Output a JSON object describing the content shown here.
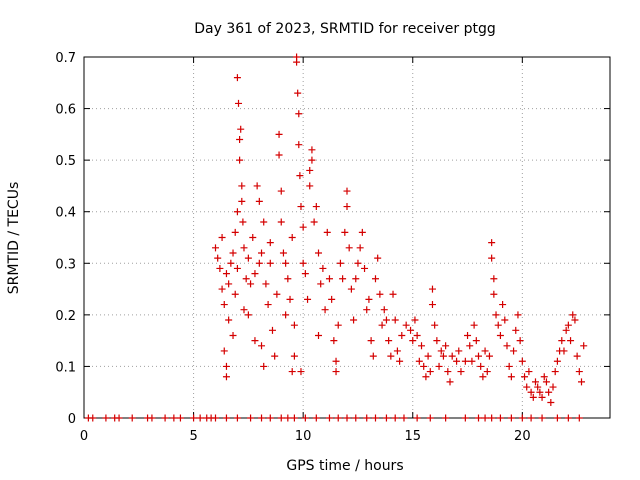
{
  "chart_data": {
    "type": "scatter",
    "title": "Day 361 of 2023, SRMTID for receiver ptgg",
    "xlabel": "GPS time / hours",
    "ylabel": "SRMTID / TECUs",
    "xlim": [
      0,
      24
    ],
    "ylim": [
      0,
      0.7
    ],
    "xticks": [
      0,
      5,
      10,
      15,
      20
    ],
    "yticks": [
      0,
      0.1,
      0.2,
      0.3,
      0.4,
      0.5,
      0.6,
      0.7
    ],
    "xtick_labels": [
      "0",
      "5",
      "10",
      "15",
      "20"
    ],
    "ytick_labels": [
      "0",
      "0.1",
      "0.2",
      "0.3",
      "0.4",
      "0.5",
      "0.6",
      "0.7"
    ],
    "grid": true,
    "marker": "+",
    "color": "#d40000",
    "series": [
      {
        "name": "SRMTID",
        "points": [
          [
            6.0,
            0.33
          ],
          [
            6.1,
            0.31
          ],
          [
            6.2,
            0.29
          ],
          [
            6.3,
            0.35
          ],
          [
            6.3,
            0.25
          ],
          [
            6.4,
            0.22
          ],
          [
            6.4,
            0.13
          ],
          [
            6.5,
            0.1
          ],
          [
            6.5,
            0.08
          ],
          [
            6.5,
            0.28
          ],
          [
            6.6,
            0.26
          ],
          [
            6.6,
            0.19
          ],
          [
            6.7,
            0.3
          ],
          [
            6.8,
            0.32
          ],
          [
            6.8,
            0.16
          ],
          [
            6.9,
            0.36
          ],
          [
            6.9,
            0.24
          ],
          [
            7.0,
            0.4
          ],
          [
            7.0,
            0.29
          ],
          [
            7.0,
            0.66
          ],
          [
            7.05,
            0.61
          ],
          [
            7.1,
            0.54
          ],
          [
            7.1,
            0.5
          ],
          [
            7.15,
            0.56
          ],
          [
            7.2,
            0.45
          ],
          [
            7.2,
            0.42
          ],
          [
            7.25,
            0.38
          ],
          [
            7.3,
            0.33
          ],
          [
            7.3,
            0.21
          ],
          [
            7.4,
            0.27
          ],
          [
            7.5,
            0.31
          ],
          [
            7.5,
            0.2
          ],
          [
            7.6,
            0.26
          ],
          [
            7.7,
            0.35
          ],
          [
            7.8,
            0.28
          ],
          [
            7.8,
            0.15
          ],
          [
            7.9,
            0.45
          ],
          [
            8.0,
            0.42
          ],
          [
            8.0,
            0.3
          ],
          [
            8.1,
            0.32
          ],
          [
            8.1,
            0.14
          ],
          [
            8.2,
            0.38
          ],
          [
            8.2,
            0.1
          ],
          [
            8.3,
            0.26
          ],
          [
            8.4,
            0.22
          ],
          [
            8.5,
            0.34
          ],
          [
            8.5,
            0.3
          ],
          [
            8.6,
            0.17
          ],
          [
            8.7,
            0.12
          ],
          [
            8.8,
            0.24
          ],
          [
            8.9,
            0.55
          ],
          [
            8.9,
            0.51
          ],
          [
            9.0,
            0.44
          ],
          [
            9.0,
            0.38
          ],
          [
            9.1,
            0.32
          ],
          [
            9.2,
            0.3
          ],
          [
            9.2,
            0.2
          ],
          [
            9.3,
            0.27
          ],
          [
            9.4,
            0.23
          ],
          [
            9.5,
            0.35
          ],
          [
            9.5,
            0.09
          ],
          [
            9.6,
            0.18
          ],
          [
            9.6,
            0.12
          ],
          [
            9.7,
            0.7
          ],
          [
            9.7,
            0.69
          ],
          [
            9.75,
            0.63
          ],
          [
            9.8,
            0.59
          ],
          [
            9.8,
            0.53
          ],
          [
            9.85,
            0.47
          ],
          [
            9.9,
            0.41
          ],
          [
            9.9,
            0.09
          ],
          [
            10.0,
            0.37
          ],
          [
            10.0,
            0.3
          ],
          [
            10.1,
            0.28
          ],
          [
            10.2,
            0.23
          ],
          [
            10.3,
            0.48
          ],
          [
            10.3,
            0.45
          ],
          [
            10.4,
            0.5
          ],
          [
            10.4,
            0.52
          ],
          [
            10.5,
            0.38
          ],
          [
            10.6,
            0.41
          ],
          [
            10.7,
            0.32
          ],
          [
            10.7,
            0.16
          ],
          [
            10.8,
            0.26
          ],
          [
            10.9,
            0.29
          ],
          [
            11.0,
            0.21
          ],
          [
            11.1,
            0.36
          ],
          [
            11.2,
            0.27
          ],
          [
            11.3,
            0.23
          ],
          [
            11.4,
            0.15
          ],
          [
            11.5,
            0.11
          ],
          [
            11.5,
            0.09
          ],
          [
            11.6,
            0.18
          ],
          [
            11.7,
            0.3
          ],
          [
            11.8,
            0.27
          ],
          [
            11.9,
            0.36
          ],
          [
            12.0,
            0.44
          ],
          [
            12.0,
            0.41
          ],
          [
            12.1,
            0.33
          ],
          [
            12.2,
            0.25
          ],
          [
            12.3,
            0.19
          ],
          [
            12.4,
            0.27
          ],
          [
            12.5,
            0.3
          ],
          [
            12.6,
            0.33
          ],
          [
            12.7,
            0.36
          ],
          [
            12.8,
            0.29
          ],
          [
            12.9,
            0.21
          ],
          [
            13.0,
            0.23
          ],
          [
            13.1,
            0.15
          ],
          [
            13.2,
            0.12
          ],
          [
            13.3,
            0.27
          ],
          [
            13.4,
            0.31
          ],
          [
            13.5,
            0.24
          ],
          [
            13.6,
            0.18
          ],
          [
            13.7,
            0.21
          ],
          [
            13.8,
            0.19
          ],
          [
            13.9,
            0.15
          ],
          [
            14.0,
            0.12
          ],
          [
            14.1,
            0.24
          ],
          [
            14.2,
            0.19
          ],
          [
            14.3,
            0.13
          ],
          [
            14.4,
            0.11
          ],
          [
            14.5,
            0.16
          ],
          [
            14.7,
            0.18
          ],
          [
            14.9,
            0.17
          ],
          [
            15.0,
            0.15
          ],
          [
            15.1,
            0.19
          ],
          [
            15.2,
            0.16
          ],
          [
            15.3,
            0.11
          ],
          [
            15.4,
            0.14
          ],
          [
            15.5,
            0.1
          ],
          [
            15.6,
            0.08
          ],
          [
            15.7,
            0.12
          ],
          [
            15.8,
            0.09
          ],
          [
            15.9,
            0.25
          ],
          [
            15.9,
            0.22
          ],
          [
            16.0,
            0.18
          ],
          [
            16.1,
            0.15
          ],
          [
            16.2,
            0.1
          ],
          [
            16.3,
            0.13
          ],
          [
            16.4,
            0.12
          ],
          [
            16.5,
            0.14
          ],
          [
            16.6,
            0.09
          ],
          [
            16.7,
            0.07
          ],
          [
            16.8,
            0.12
          ],
          [
            17.0,
            0.11
          ],
          [
            17.1,
            0.13
          ],
          [
            17.2,
            0.09
          ],
          [
            17.4,
            0.11
          ],
          [
            17.5,
            0.16
          ],
          [
            17.6,
            0.14
          ],
          [
            17.7,
            0.11
          ],
          [
            17.8,
            0.18
          ],
          [
            17.9,
            0.15
          ],
          [
            18.0,
            0.12
          ],
          [
            18.1,
            0.1
          ],
          [
            18.2,
            0.08
          ],
          [
            18.3,
            0.13
          ],
          [
            18.4,
            0.09
          ],
          [
            18.5,
            0.12
          ],
          [
            18.6,
            0.34
          ],
          [
            18.6,
            0.31
          ],
          [
            18.7,
            0.27
          ],
          [
            18.7,
            0.24
          ],
          [
            18.8,
            0.2
          ],
          [
            18.9,
            0.18
          ],
          [
            19.0,
            0.16
          ],
          [
            19.1,
            0.22
          ],
          [
            19.2,
            0.19
          ],
          [
            19.3,
            0.14
          ],
          [
            19.4,
            0.1
          ],
          [
            19.5,
            0.08
          ],
          [
            19.6,
            0.13
          ],
          [
            19.7,
            0.17
          ],
          [
            19.8,
            0.2
          ],
          [
            19.9,
            0.15
          ],
          [
            20.0,
            0.11
          ],
          [
            20.1,
            0.08
          ],
          [
            20.2,
            0.06
          ],
          [
            20.3,
            0.09
          ],
          [
            20.4,
            0.05
          ],
          [
            20.5,
            0.04
          ],
          [
            20.6,
            0.07
          ],
          [
            20.7,
            0.06
          ],
          [
            20.8,
            0.05
          ],
          [
            20.9,
            0.04
          ],
          [
            21.0,
            0.08
          ],
          [
            21.1,
            0.07
          ],
          [
            21.2,
            0.05
          ],
          [
            21.3,
            0.03
          ],
          [
            21.4,
            0.06
          ],
          [
            21.5,
            0.09
          ],
          [
            21.6,
            0.11
          ],
          [
            21.7,
            0.13
          ],
          [
            21.8,
            0.15
          ],
          [
            21.9,
            0.13
          ],
          [
            22.0,
            0.17
          ],
          [
            22.1,
            0.18
          ],
          [
            22.2,
            0.15
          ],
          [
            22.3,
            0.2
          ],
          [
            22.4,
            0.19
          ],
          [
            22.5,
            0.12
          ],
          [
            22.6,
            0.09
          ],
          [
            22.7,
            0.07
          ],
          [
            22.8,
            0.14
          ]
        ]
      },
      {
        "name": "zero",
        "x": [
          0.2,
          0.4,
          1.0,
          1.4,
          1.6,
          2.2,
          2.9,
          3.1,
          3.7,
          4.1,
          4.4,
          5.0,
          5.3,
          5.6,
          5.8,
          6.0,
          6.5,
          7.0,
          7.6,
          8.1,
          8.5,
          9.0,
          9.3,
          9.6,
          10.1,
          10.6,
          11.2,
          11.6,
          12.0,
          12.4,
          12.9,
          13.3,
          13.8,
          14.2,
          14.6,
          15.2,
          15.8,
          16.5,
          17.4,
          18.0,
          18.3,
          18.6,
          19.0,
          19.5,
          20.0,
          20.4,
          20.9,
          21.6,
          22.1,
          22.6
        ],
        "y": 0
      }
    ]
  }
}
